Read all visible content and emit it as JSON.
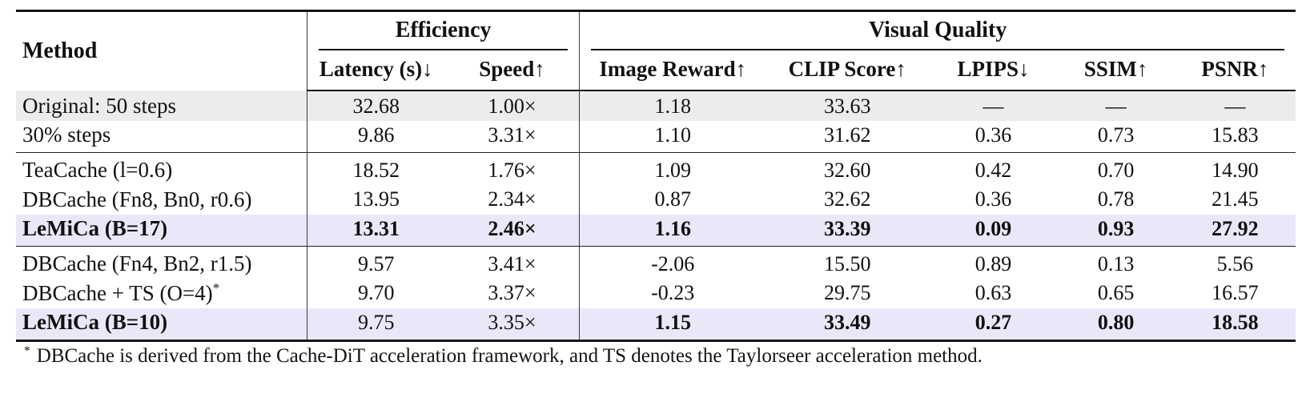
{
  "header": {
    "method": "Method",
    "groups": [
      {
        "label": "Efficiency",
        "span": 2
      },
      {
        "label": "Visual Quality",
        "span": 5
      }
    ],
    "columns": [
      "Latency (s)↓",
      "Speed↑",
      "Image Reward↑",
      "CLIP Score↑",
      "LPIPS↓",
      "SSIM↑",
      "PSNR↑"
    ]
  },
  "body": {
    "groups": [
      {
        "rows": [
          {
            "method": "Original: 50 steps",
            "values": [
              "32.68",
              "1.00×",
              "1.18",
              "33.63",
              "—",
              "—",
              "—"
            ],
            "shade": "gray",
            "method_bold": false,
            "bold": []
          },
          {
            "method": "30% steps",
            "values": [
              "9.86",
              "3.31×",
              "1.10",
              "31.62",
              "0.36",
              "0.73",
              "15.83"
            ],
            "shade": "none",
            "method_bold": false,
            "bold": []
          }
        ]
      },
      {
        "rows": [
          {
            "method": "TeaCache (l=0.6)",
            "values": [
              "18.52",
              "1.76×",
              "1.09",
              "32.60",
              "0.42",
              "0.70",
              "14.90"
            ],
            "shade": "none",
            "method_bold": false,
            "bold": []
          },
          {
            "method": "DBCache (Fn8, Bn0, r0.6)",
            "values": [
              "13.95",
              "2.34×",
              "0.87",
              "32.62",
              "0.36",
              "0.78",
              "21.45"
            ],
            "shade": "none",
            "method_bold": false,
            "bold": []
          },
          {
            "method": "LeMiCa (B=17)",
            "values": [
              "13.31",
              "2.46×",
              "1.16",
              "33.39",
              "0.09",
              "0.93",
              "27.92"
            ],
            "shade": "lavender",
            "method_bold": true,
            "bold": [
              0,
              1,
              2,
              3,
              4,
              5,
              6
            ]
          }
        ]
      },
      {
        "rows": [
          {
            "method": "DBCache (Fn4, Bn2, r1.5)",
            "values": [
              "9.57",
              "3.41×",
              "-2.06",
              "15.50",
              "0.89",
              "0.13",
              "5.56"
            ],
            "shade": "none",
            "method_bold": false,
            "bold": []
          },
          {
            "method": "DBCache + TS (O=4)",
            "method_sup": "*",
            "values": [
              "9.70",
              "3.37×",
              "-0.23",
              "29.75",
              "0.63",
              "0.65",
              "16.57"
            ],
            "shade": "none",
            "method_bold": false,
            "bold": []
          },
          {
            "method": "LeMiCa (B=10)",
            "values": [
              "9.75",
              "3.35×",
              "1.15",
              "33.49",
              "0.27",
              "0.80",
              "18.58"
            ],
            "shade": "lavender",
            "method_bold": true,
            "bold": [
              2,
              3,
              4,
              5,
              6
            ]
          }
        ]
      }
    ]
  },
  "footnote": {
    "marker": "*",
    "text": "DBCache is derived from the Cache-DiT acceleration framework, and TS denotes the Taylorseer acceleration method."
  },
  "colors": {
    "shade_gray": "#ececec",
    "shade_lavender": "#e8e8f8",
    "rule": "#161616"
  }
}
